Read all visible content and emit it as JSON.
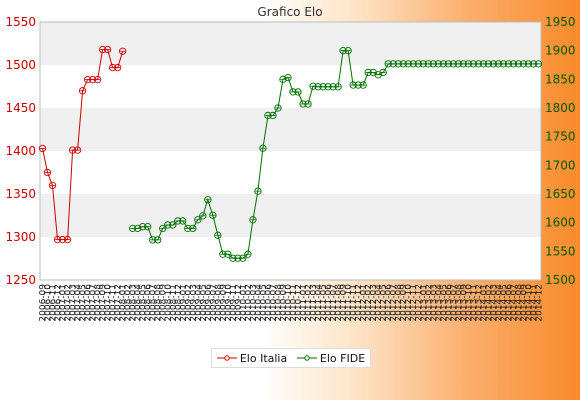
{
  "chart_data": {
    "type": "line",
    "title": "Grafico Elo",
    "xlabel": "",
    "ylabel_left": "",
    "ylabel_right": "",
    "ylim_left": [
      1250,
      1550
    ],
    "ylim_right": [
      1500,
      1950
    ],
    "left_ticks": [
      "1250",
      "1300",
      "1350",
      "1400",
      "1450",
      "1500",
      "1550"
    ],
    "right_ticks": [
      "1500",
      "1550",
      "1600",
      "1650",
      "1700",
      "1750",
      "1800",
      "1850",
      "1900",
      "1950"
    ],
    "grid": "horizontal alternating bands",
    "legend_position": "bottom-center",
    "n_points": 100,
    "x_tick_labels": [
      "2006-09",
      "2006-10",
      "2006-11",
      "2006-12",
      "2007-01",
      "2007-02",
      "2007-03",
      "2007-04",
      "2007-05",
      "2007-06",
      "2007-07",
      "2007-08",
      "2007-09",
      "2007-10",
      "2007-11",
      "2007-12",
      "2008-01",
      "2008-02",
      "2008-03",
      "2008-04",
      "2008-05",
      "2008-06",
      "2008-07",
      "2008-08",
      "2008-09",
      "2008-10",
      "2008-11",
      "2008-12",
      "2009-01",
      "2009-02",
      "2009-03",
      "2009-04",
      "2009-05",
      "2009-06",
      "2009-07",
      "2009-08",
      "2009-09",
      "2009-10",
      "2009-11",
      "2009-12",
      "2010-01",
      "2010-02",
      "2010-03",
      "2010-04",
      "2010-05",
      "2010-06",
      "2010-07",
      "2010-08",
      "2010-09",
      "2010-10",
      "2010-11",
      "2010-12",
      "2011-01",
      "2011-02",
      "2011-03",
      "2011-04",
      "2011-05",
      "2011-06",
      "2011-07",
      "2011-08",
      "2011-09",
      "2011-10",
      "2011-11",
      "2011-12",
      "2012-01",
      "2012-02",
      "2012-03",
      "2012-04",
      "2012-05",
      "2012-06",
      "2012-07",
      "2012-08",
      "2012-09",
      "2012-10",
      "2012-11",
      "2012-12",
      "2013-01",
      "2013-02",
      "2013-03",
      "2013-04",
      "2013-05",
      "2013-06",
      "2013-07",
      "2013-08",
      "2013-09",
      "2013-10",
      "2013-11",
      "2013-12",
      "2014-01",
      "2014-02",
      "2014-03",
      "2014-04",
      "2014-05",
      "2014-06",
      "2014-07",
      "2014-08",
      "2014-09",
      "2014-10",
      "2014-11",
      "2014-12"
    ],
    "series": [
      {
        "name": "Elo Italia",
        "axis": "left",
        "color": "#d40000",
        "x_index": [
          0,
          1,
          2,
          3,
          4,
          5,
          6,
          7,
          8,
          9,
          10,
          11,
          12,
          13,
          14,
          15,
          16
        ],
        "values": [
          1403,
          1375,
          1360,
          1297,
          1297,
          1297,
          1401,
          1401,
          1470,
          1483,
          1483,
          1483,
          1518,
          1518,
          1497,
          1497,
          1516
        ]
      },
      {
        "name": "Elo FIDE",
        "axis": "right",
        "color": "#007000",
        "x_index": [
          18,
          19,
          20,
          21,
          22,
          23,
          24,
          25,
          26,
          27,
          28,
          29,
          30,
          31,
          32,
          33,
          34,
          35,
          36,
          37,
          38,
          39,
          40,
          41,
          42,
          43,
          44,
          45,
          46,
          47,
          48,
          49,
          50,
          51,
          52,
          53,
          54,
          55,
          56,
          57,
          58,
          59,
          60,
          61,
          62,
          63,
          64,
          65,
          66,
          67,
          68,
          69,
          70,
          71,
          72,
          73,
          74,
          75,
          76,
          77,
          78,
          79,
          80,
          81,
          82,
          83,
          84,
          85,
          86,
          87,
          88,
          89,
          90,
          91,
          92,
          93,
          94,
          95,
          96,
          97,
          98,
          99
        ],
        "values": [
          1590,
          1590,
          1593,
          1593,
          1570,
          1570,
          1590,
          1596,
          1596,
          1603,
          1603,
          1590,
          1590,
          1605,
          1612,
          1640,
          1613,
          1578,
          1545,
          1545,
          1538,
          1538,
          1538,
          1545,
          1605,
          1655,
          1730,
          1787,
          1787,
          1800,
          1850,
          1853,
          1828,
          1828,
          1807,
          1807,
          1838,
          1837,
          1837,
          1837,
          1837,
          1837,
          1900,
          1900,
          1840,
          1840,
          1840,
          1862,
          1862,
          1858,
          1862,
          1877,
          1877,
          1877,
          1877,
          1877,
          1877,
          1877,
          1877,
          1877,
          1877,
          1877,
          1877,
          1877,
          1877,
          1877,
          1877,
          1877,
          1877,
          1877,
          1877,
          1877,
          1877,
          1877,
          1877,
          1877,
          1877,
          1877,
          1877,
          1877,
          1877,
          1877
        ]
      }
    ]
  },
  "legend": {
    "items": [
      {
        "label": "Elo Italia",
        "color": "#d40000"
      },
      {
        "label": "Elo FIDE",
        "color": "#007000"
      }
    ]
  }
}
